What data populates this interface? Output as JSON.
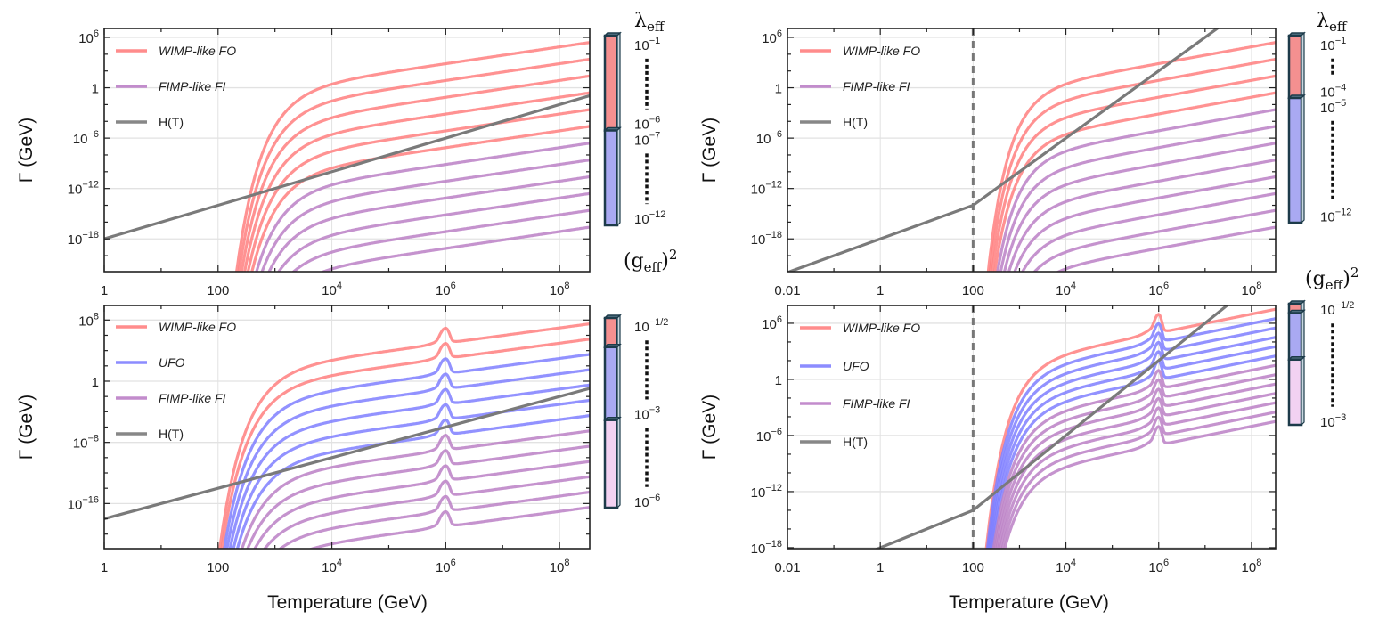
{
  "chart_data": [
    {
      "type": "line",
      "panel": "top-left",
      "xlabel": "",
      "ylabel": "Γ (GeV)",
      "xscale": "log",
      "yscale": "log",
      "xlim_log10": [
        0,
        8.53
      ],
      "ylim_log10": [
        -21.9,
        7.06
      ],
      "grid": true,
      "xticks": [
        {
          "v": 0,
          "base": "1"
        },
        {
          "v": 2,
          "base": "100"
        },
        {
          "v": 4,
          "base": "10",
          "exp": "4"
        },
        {
          "v": 6,
          "base": "10",
          "exp": "6"
        },
        {
          "v": 8,
          "base": "10",
          "exp": "8"
        }
      ],
      "yticks": [
        {
          "v": 6,
          "base": "10",
          "exp": "6"
        },
        {
          "v": 0,
          "base": "1"
        },
        {
          "v": -6,
          "base": "10",
          "exp": "−6"
        },
        {
          "v": -12,
          "base": "10",
          "exp": "−12"
        },
        {
          "v": -18,
          "base": "10",
          "exp": "−18"
        }
      ],
      "legend": [
        {
          "label": "WIMP-like FO",
          "color": "#ff7f7f"
        },
        {
          "label": "FIMP-like FI",
          "color": "#bb80c6"
        },
        {
          "label": "H(T)",
          "color": "#7a7a7a"
        }
      ],
      "legend_position": "top-left",
      "model": {
        "kind": "boltzmann_plateau",
        "slope": 1,
        "M_GeV": 10300
      },
      "series": [
        {
          "group": 0,
          "log10_gamma_at_xmax": 5.4
        },
        {
          "group": 0,
          "log10_gamma_at_xmax": 3.4
        },
        {
          "group": 0,
          "log10_gamma_at_xmax": 1.4
        },
        {
          "group": 0,
          "log10_gamma_at_xmax": -0.6
        },
        {
          "group": 0,
          "log10_gamma_at_xmax": -2.6
        },
        {
          "group": 0,
          "log10_gamma_at_xmax": -4.6
        },
        {
          "group": 1,
          "log10_gamma_at_xmax": -6.6
        },
        {
          "group": 1,
          "log10_gamma_at_xmax": -8.6
        },
        {
          "group": 1,
          "log10_gamma_at_xmax": -10.6
        },
        {
          "group": 1,
          "log10_gamma_at_xmax": -12.6
        },
        {
          "group": 1,
          "log10_gamma_at_xmax": -14.6
        },
        {
          "group": 1,
          "log10_gamma_at_xmax": -16.6
        }
      ],
      "hubble": {
        "points_log10": [
          [
            0,
            -18
          ],
          [
            8.53,
            -0.94
          ]
        ]
      },
      "vline_log10T": null,
      "colorbar": {
        "title": {
          "main": "λ",
          "sub": "eff"
        },
        "segments": [
          {
            "group": 0,
            "count": 6
          },
          {
            "group": 1,
            "count": 6
          }
        ],
        "labels": [
          {
            "index": 0,
            "base": "10",
            "exp": "−1"
          },
          {
            "index": 5,
            "base": "10",
            "exp": "−6"
          },
          {
            "index": 6,
            "base": "10",
            "exp": "−7"
          },
          {
            "index": 11,
            "base": "10",
            "exp": "−12"
          }
        ]
      }
    },
    {
      "type": "line",
      "panel": "top-right",
      "xlabel": "",
      "ylabel": "Γ (GeV)",
      "xscale": "log",
      "yscale": "log",
      "xlim_log10": [
        -2,
        8.52
      ],
      "ylim_log10": [
        -21.9,
        7.06
      ],
      "grid": true,
      "xticks": [
        {
          "v": -2,
          "base": "0.01"
        },
        {
          "v": 0,
          "base": "1"
        },
        {
          "v": 2,
          "base": "100"
        },
        {
          "v": 4,
          "base": "10",
          "exp": "4"
        },
        {
          "v": 6,
          "base": "10",
          "exp": "6"
        },
        {
          "v": 8,
          "base": "10",
          "exp": "8"
        }
      ],
      "yticks": [
        {
          "v": 6,
          "base": "10",
          "exp": "6"
        },
        {
          "v": 0,
          "base": "1"
        },
        {
          "v": -6,
          "base": "10",
          "exp": "−6"
        },
        {
          "v": -12,
          "base": "10",
          "exp": "−12"
        },
        {
          "v": -18,
          "base": "10",
          "exp": "−18"
        }
      ],
      "legend": [
        {
          "label": "WIMP-like FO",
          "color": "#ff7f7f"
        },
        {
          "label": "FIMP-like FI",
          "color": "#bb80c6"
        },
        {
          "label": "H(T)",
          "color": "#7a7a7a"
        }
      ],
      "legend_position": "top-left",
      "model": {
        "kind": "boltzmann_plateau",
        "slope": 1,
        "M_GeV": 10300
      },
      "series": [
        {
          "group": 0,
          "log10_gamma_at_xmax": 5.4
        },
        {
          "group": 0,
          "log10_gamma_at_xmax": 3.4
        },
        {
          "group": 0,
          "log10_gamma_at_xmax": 1.4
        },
        {
          "group": 0,
          "log10_gamma_at_xmax": -0.6
        },
        {
          "group": 1,
          "log10_gamma_at_xmax": -2.6
        },
        {
          "group": 1,
          "log10_gamma_at_xmax": -4.6
        },
        {
          "group": 1,
          "log10_gamma_at_xmax": -6.6
        },
        {
          "group": 1,
          "log10_gamma_at_xmax": -8.6
        },
        {
          "group": 1,
          "log10_gamma_at_xmax": -10.6
        },
        {
          "group": 1,
          "log10_gamma_at_xmax": -12.6
        },
        {
          "group": 1,
          "log10_gamma_at_xmax": -14.6
        },
        {
          "group": 1,
          "log10_gamma_at_xmax": -16.6
        }
      ],
      "hubble": {
        "points_log10": [
          [
            -2,
            -22
          ],
          [
            2,
            -14
          ],
          [
            8.52,
            12.1
          ]
        ]
      },
      "vline_log10T": 2,
      "colorbar": {
        "title": {
          "main": "λ",
          "sub": "eff"
        },
        "segments": [
          {
            "group": 0,
            "count": 4
          },
          {
            "group": 1,
            "count": 8
          }
        ],
        "labels": [
          {
            "index": 0,
            "base": "10",
            "exp": "−1"
          },
          {
            "index": 3,
            "base": "10",
            "exp": "−4"
          },
          {
            "index": 4,
            "base": "10",
            "exp": "−5"
          },
          {
            "index": 11,
            "base": "10",
            "exp": "−12"
          }
        ]
      }
    },
    {
      "type": "line",
      "panel": "bottom-left",
      "xlabel": "Temperature (GeV)",
      "ylabel": "Γ (GeV)",
      "xscale": "log",
      "yscale": "log",
      "xlim_log10": [
        0,
        8.53
      ],
      "ylim_log10": [
        -21.9,
        9.9
      ],
      "grid": true,
      "xticks": [
        {
          "v": 0,
          "base": "1"
        },
        {
          "v": 2,
          "base": "100"
        },
        {
          "v": 4,
          "base": "10",
          "exp": "4"
        },
        {
          "v": 6,
          "base": "10",
          "exp": "6"
        },
        {
          "v": 8,
          "base": "10",
          "exp": "8"
        }
      ],
      "yticks": [
        {
          "v": 8,
          "base": "10",
          "exp": "8"
        },
        {
          "v": 0,
          "base": "1"
        },
        {
          "v": -8,
          "base": "10",
          "exp": "−8"
        },
        {
          "v": -16,
          "base": "10",
          "exp": "−16"
        }
      ],
      "legend": [
        {
          "label": "WIMP-like FO",
          "color": "#ff7f7f"
        },
        {
          "label": "UFO",
          "color": "#7f7fff"
        },
        {
          "label": "FIMP-like FI",
          "color": "#bb80c6"
        },
        {
          "label": "H(T)",
          "color": "#7a7a7a"
        }
      ],
      "legend_position": "top-left",
      "model": {
        "kind": "resonance",
        "resonance_log10T": 6,
        "low_slope": 5.5,
        "low_offset": -1.65,
        "peak_log10": -0.6,
        "M_GeV": 5640
      },
      "series": [
        {
          "group": 0,
          "log10_gamma_at_xmax": 7.5
        },
        {
          "group": 0,
          "log10_gamma_at_xmax": 5.5
        },
        {
          "group": 1,
          "log10_gamma_at_xmax": 3.5
        },
        {
          "group": 1,
          "log10_gamma_at_xmax": 1.5
        },
        {
          "group": 1,
          "log10_gamma_at_xmax": -0.5
        },
        {
          "group": 1,
          "log10_gamma_at_xmax": -2.5
        },
        {
          "group": 1,
          "log10_gamma_at_xmax": -4.5
        },
        {
          "group": 2,
          "log10_gamma_at_xmax": -6.5
        },
        {
          "group": 2,
          "log10_gamma_at_xmax": -8.5
        },
        {
          "group": 2,
          "log10_gamma_at_xmax": -10.5
        },
        {
          "group": 2,
          "log10_gamma_at_xmax": -12.5
        },
        {
          "group": 2,
          "log10_gamma_at_xmax": -14.5
        },
        {
          "group": 2,
          "log10_gamma_at_xmax": -16.5
        }
      ],
      "hubble": {
        "points_log10": [
          [
            0,
            -18
          ],
          [
            8.53,
            -0.94
          ]
        ]
      },
      "vline_log10T": null,
      "colorbar": {
        "title": {
          "pre": "(g",
          "sub": "eff",
          "post": ")",
          "sup": "2"
        },
        "segments": [
          {
            "group": 0,
            "count": 2
          },
          {
            "group": 1,
            "count": 5
          },
          {
            "group": 2,
            "count": 6
          }
        ],
        "labels": [
          {
            "index": 0,
            "base": "10",
            "exp": "−1/2"
          },
          {
            "index": 6,
            "base": "10",
            "exp": "−3"
          },
          {
            "index": 12,
            "base": "10",
            "exp": "−6"
          }
        ]
      }
    },
    {
      "type": "line",
      "panel": "bottom-right",
      "xlabel": "Temperature (GeV)",
      "ylabel": "Γ (GeV)",
      "xscale": "log",
      "yscale": "log",
      "xlim_log10": [
        -2,
        8.52
      ],
      "ylim_log10": [
        -18.1,
        7.9
      ],
      "grid": true,
      "xticks": [
        {
          "v": -2,
          "base": "0.01"
        },
        {
          "v": 0,
          "base": "1"
        },
        {
          "v": 2,
          "base": "100"
        },
        {
          "v": 4,
          "base": "10",
          "exp": "4"
        },
        {
          "v": 6,
          "base": "10",
          "exp": "6"
        },
        {
          "v": 8,
          "base": "10",
          "exp": "8"
        }
      ],
      "yticks": [
        {
          "v": 6,
          "base": "10",
          "exp": "6"
        },
        {
          "v": 0,
          "base": "1"
        },
        {
          "v": -6,
          "base": "10",
          "exp": "−6"
        },
        {
          "v": -12,
          "base": "10",
          "exp": "−12"
        },
        {
          "v": -18,
          "base": "10",
          "exp": "−18"
        }
      ],
      "legend": [
        {
          "label": "WIMP-like FO",
          "color": "#ff7f7f"
        },
        {
          "label": "UFO",
          "color": "#7f7fff"
        },
        {
          "label": "FIMP-like FI",
          "color": "#bb80c6"
        },
        {
          "label": "H(T)",
          "color": "#7a7a7a"
        }
      ],
      "legend_position": "top-left",
      "model": {
        "kind": "resonance",
        "resonance_log10T": 6,
        "low_slope": 4.5,
        "low_offset": -1.45,
        "peak_log10": -0.6,
        "M_GeV": 8590
      },
      "series": [
        {
          "group": 0,
          "log10_gamma_at_xmax": 7.5
        },
        {
          "group": 1,
          "log10_gamma_at_xmax": 6.5
        },
        {
          "group": 1,
          "log10_gamma_at_xmax": 5.5
        },
        {
          "group": 1,
          "log10_gamma_at_xmax": 4.5
        },
        {
          "group": 1,
          "log10_gamma_at_xmax": 3.5
        },
        {
          "group": 1,
          "log10_gamma_at_xmax": 2.5
        },
        {
          "group": 2,
          "log10_gamma_at_xmax": 1.5
        },
        {
          "group": 2,
          "log10_gamma_at_xmax": 0.5
        },
        {
          "group": 2,
          "log10_gamma_at_xmax": -0.5
        },
        {
          "group": 2,
          "log10_gamma_at_xmax": -1.5
        },
        {
          "group": 2,
          "log10_gamma_at_xmax": -2.5
        },
        {
          "group": 2,
          "log10_gamma_at_xmax": -3.5
        },
        {
          "group": 2,
          "log10_gamma_at_xmax": -4.5
        }
      ],
      "hubble": {
        "points_log10": [
          [
            -2,
            -22
          ],
          [
            2,
            -14
          ],
          [
            8.52,
            12.1
          ]
        ]
      },
      "vline_log10T": 2,
      "colorbar": {
        "title": {
          "pre": "(g",
          "sub": "eff",
          "post": ")",
          "sup": "2"
        },
        "segments": [
          {
            "group": 0,
            "count": 1
          },
          {
            "group": 1,
            "count": 5
          },
          {
            "group": 2,
            "count": 7
          }
        ],
        "labels": [
          {
            "index": 0,
            "base": "10",
            "exp": "−1/2"
          },
          {
            "index": 12,
            "base": "10",
            "exp": "−3"
          }
        ]
      }
    }
  ],
  "colorbar_fills": [
    "#f49090",
    "#a9a9f2",
    "#f2d2f2"
  ],
  "colorbar_border": "#1d3b4a"
}
